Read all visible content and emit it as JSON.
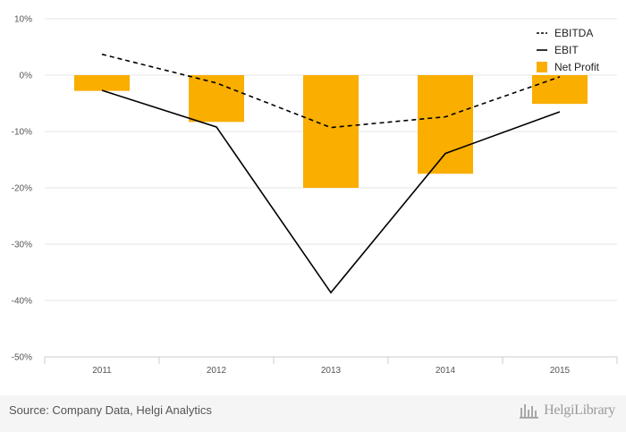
{
  "chart_data": {
    "type": "bar+line",
    "categories": [
      "2011",
      "2012",
      "2013",
      "2014",
      "2015"
    ],
    "ylim": [
      -50,
      10
    ],
    "yticks": [
      "10%",
      "0%",
      "-10%",
      "-20%",
      "-30%",
      "-40%",
      "-50%"
    ],
    "ytick_values": [
      10,
      0,
      -10,
      -20,
      -30,
      -40,
      -50
    ],
    "grid": true,
    "legend_position": "top-right",
    "series": [
      {
        "name": "EBITDA",
        "kind": "line",
        "style": "dashed",
        "color": "#000000",
        "values": [
          3.7,
          -1.4,
          -9.3,
          -7.4,
          -0.3
        ]
      },
      {
        "name": "EBIT",
        "kind": "line",
        "style": "solid",
        "color": "#000000",
        "values": [
          -2.7,
          -9.2,
          -38.6,
          -13.9,
          -6.5
        ]
      },
      {
        "name": "Net Profit",
        "kind": "bar",
        "color": "#F9AE00",
        "values": [
          -2.8,
          -8.3,
          -20.0,
          -17.5,
          -5.1
        ]
      }
    ]
  },
  "footer": {
    "source": "Source: Company Data, Helgi Analytics",
    "brand": "HelgiLibrary"
  }
}
